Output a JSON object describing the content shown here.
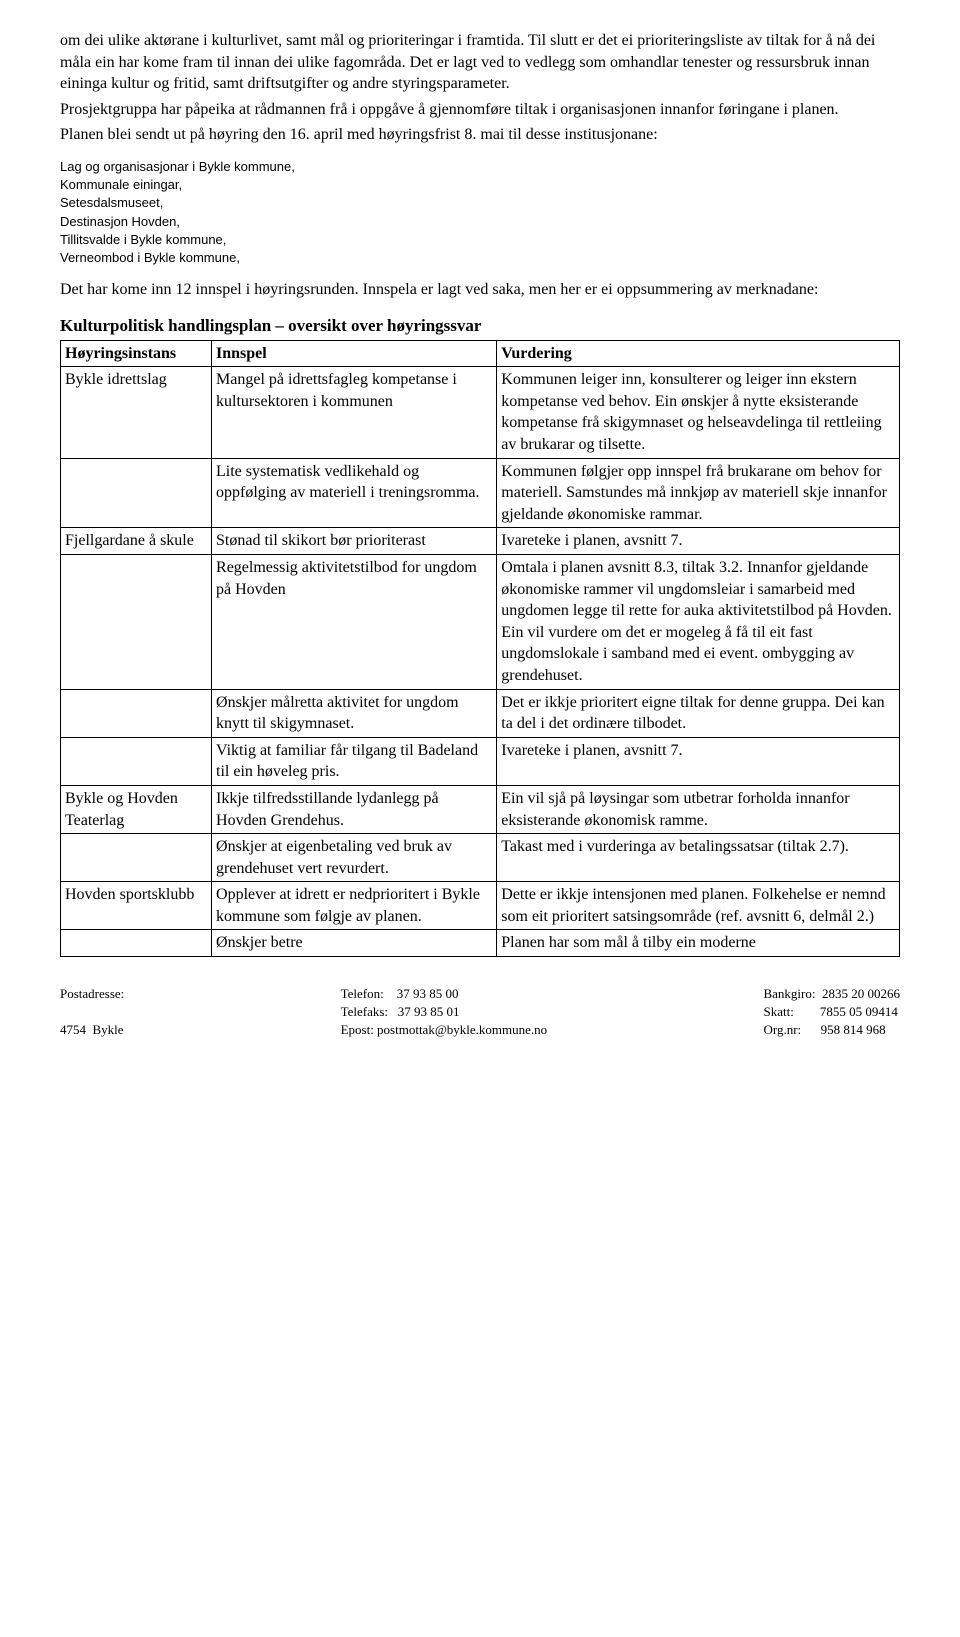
{
  "intro": {
    "p1": "om dei ulike aktørane i kulturlivet, samt mål og prioriteringar i framtida. Til slutt er det ei prioriteringsliste av tiltak for å nå dei måla ein har kome fram til innan dei ulike fagområda. Det er lagt ved to vedlegg som omhandlar tenester og ressursbruk innan eininga kultur og fritid, samt driftsutgifter og andre styringsparameter.",
    "p2": "Prosjektgruppa har påpeika at rådmannen frå i oppgåve å gjennomføre tiltak i organisasjonen innanfor føringane i planen.",
    "p3": "Planen blei sendt ut på høyring den 16. april med høyringsfrist 8. mai til desse institusjonane:"
  },
  "recipients": [
    "Lag og organisasjonar i Bykle kommune,",
    "Kommunale einingar,",
    "Setesdalsmuseet,",
    "Destinasjon Hovden,",
    "Tillitsvalde i Bykle kommune,",
    "Verneombod i Bykle kommune,"
  ],
  "summary": "Det har kome inn 12 innspel i høyringsrunden. Innspela er lagt ved saka, men her er ei oppsummering av merknadane:",
  "tableTitle": "Kulturpolitisk handlingsplan – oversikt over høyringssvar",
  "headers": {
    "h1": "Høyringsinstans",
    "h2": "Innspel",
    "h3": "Vurdering"
  },
  "rows": [
    {
      "a": "Bykle idrettslag",
      "b": "Mangel på idrettsfagleg kompetanse i kultursektoren i kommunen",
      "c": "Kommunen leiger inn, konsulterer og leiger inn ekstern kompetanse ved behov. Ein ønskjer å nytte eksisterande kompetanse frå skigymnaset og helseavdelinga til rettleiing av brukarar og tilsette."
    },
    {
      "a": "",
      "b": "Lite systematisk vedlikehald og oppfølging av materiell i treningsromma.",
      "c": "Kommunen følgjer opp innspel frå brukarane om behov for materiell. Samstundes må innkjøp av materiell skje innanfor gjeldande økonomiske rammar."
    },
    {
      "a": "Fjellgardane å skule",
      "b": "Stønad til skikort bør prioriterast",
      "c": "Ivareteke i planen, avsnitt 7."
    },
    {
      "a": "",
      "b": "Regelmessig aktivitetstilbod for ungdom på Hovden",
      "c": "Omtala i planen avsnitt 8.3, tiltak 3.2. Innanfor gjeldande økonomiske rammer vil ungdomsleiar i samarbeid med ungdomen legge til rette for auka aktivitetstilbod på Hovden. Ein vil vurdere om det er mogeleg å få til eit fast ungdomslokale i samband med ei event. ombygging av grendehuset."
    },
    {
      "a": "",
      "b": "Ønskjer målretta aktivitet for ungdom knytt til skigymnaset.",
      "c": "Det er ikkje prioritert eigne tiltak for denne gruppa. Dei kan ta del i det ordinære tilbodet."
    },
    {
      "a": "",
      "b": "Viktig at familiar får tilgang til Badeland til ein høveleg pris.",
      "c": "Ivareteke i planen, avsnitt 7."
    },
    {
      "a": "Bykle og Hovden Teaterlag",
      "b": "Ikkje tilfredsstillande lydanlegg på Hovden Grendehus.",
      "c": "Ein vil sjå på løysingar som utbetrar forholda innanfor eksisterande økonomisk ramme."
    },
    {
      "a": "",
      "b": "Ønskjer at eigenbetaling ved bruk av grendehuset vert revurdert.",
      "c": "Takast med i vurderinga av betalingssatsar (tiltak 2.7)."
    },
    {
      "a": "Hovden sportsklubb",
      "b": "Opplever at idrett er nedprioritert i Bykle kommune som følgje av planen.",
      "c": "Dette er ikkje intensjonen med planen. Folkehelse er nemnd som eit prioritert satsingsområde (ref. avsnitt 6, delmål 2.)"
    },
    {
      "a": "",
      "b": "Ønskjer betre",
      "c": "Planen har som mål å tilby ein moderne"
    }
  ],
  "footer": {
    "left": {
      "l1": "Postadresse:",
      "l2": "",
      "l3": "4754  Bykle"
    },
    "mid": {
      "l1a": "Telefon:",
      "l1b": "37 93 85 00",
      "l2a": "Telefaks:",
      "l2b": "37 93 85 01",
      "l3a": "Epost: postmottak@bykle.kommune.no"
    },
    "right": {
      "l1a": "Bankgiro:",
      "l1b": "2835 20 00266",
      "l2a": "Skatt:",
      "l2b": "7855 05 09414",
      "l3a": "Org.nr:",
      "l3b": "958 814 968"
    }
  }
}
